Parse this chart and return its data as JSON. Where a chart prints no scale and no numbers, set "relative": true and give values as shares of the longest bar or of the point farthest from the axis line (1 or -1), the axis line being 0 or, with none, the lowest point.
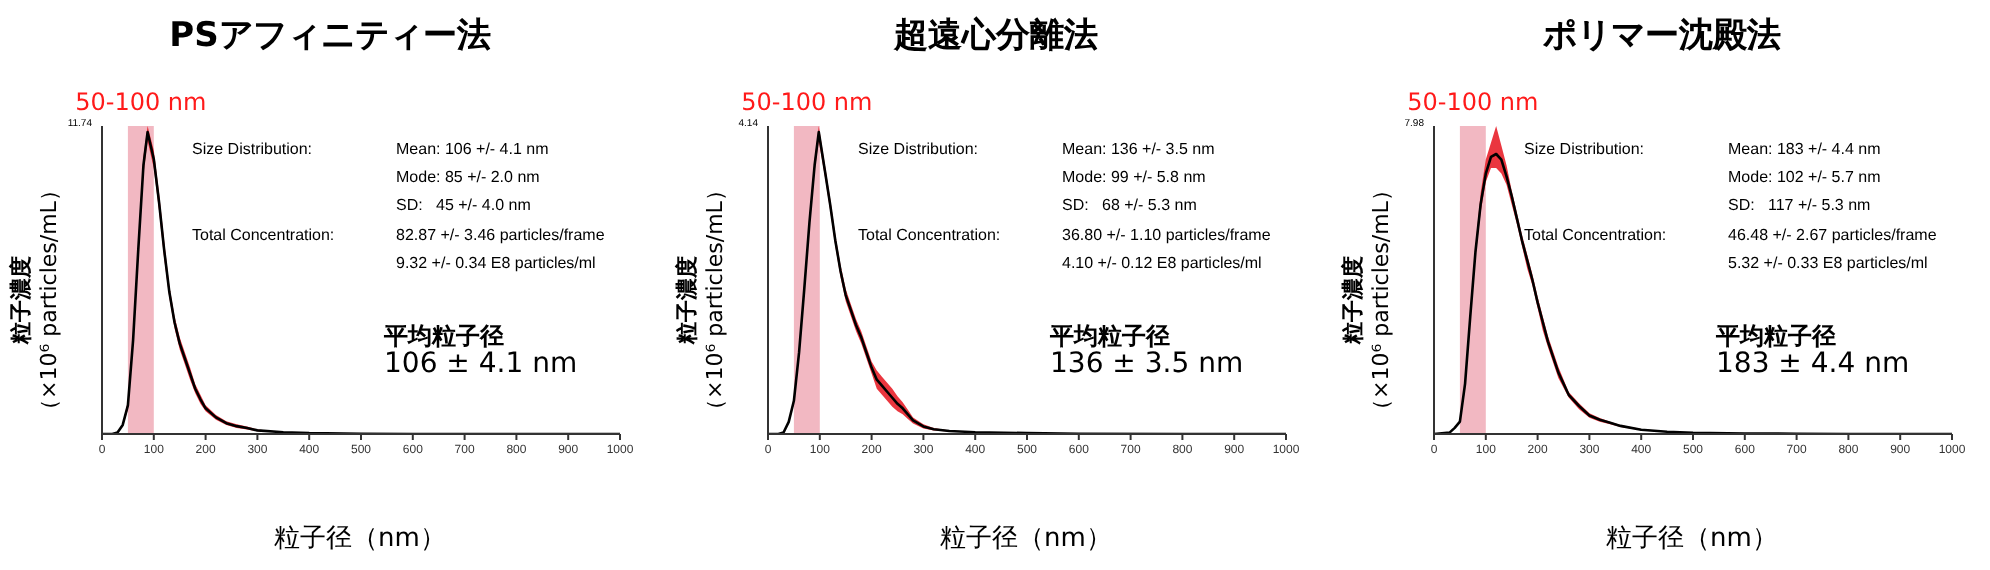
{
  "chart_data": [
    {
      "type": "line",
      "title": "PSアフィニティー法",
      "xlabel": "粒子径（nm）",
      "ylabel": "粒子濃度（×10⁶ particles/mL）",
      "relative": true,
      "xlim": [
        0,
        1000
      ],
      "xticks": [
        0,
        100,
        200,
        300,
        400,
        500,
        600,
        700,
        800,
        900,
        1000
      ],
      "x": [
        0,
        20,
        30,
        40,
        50,
        60,
        70,
        80,
        88,
        100,
        110,
        120,
        130,
        140,
        150,
        160,
        170,
        180,
        190,
        200,
        220,
        240,
        260,
        280,
        300,
        350,
        400,
        500,
        600,
        700,
        800,
        900,
        1000
      ],
      "series": [
        {
          "color": "#000000",
          "values": [
            0,
            0,
            0.005,
            0.03,
            0.095,
            0.31,
            0.61,
            0.89,
            1,
            0.91,
            0.77,
            0.61,
            0.47,
            0.37,
            0.3,
            0.25,
            0.2,
            0.15,
            0.115,
            0.085,
            0.055,
            0.036,
            0.026,
            0.02,
            0.012,
            0.006,
            0.003,
            0.001,
            0,
            0,
            0,
            0,
            0
          ],
          "lower": [
            0,
            0,
            0.005,
            0.025,
            0.08,
            0.29,
            0.58,
            0.86,
            0.97,
            0.88,
            0.74,
            0.58,
            0.45,
            0.35,
            0.28,
            0.23,
            0.18,
            0.135,
            0.1,
            0.075,
            0.047,
            0.03,
            0.02,
            0.015,
            0.009,
            0.005,
            0.003,
            0.001,
            0,
            0,
            0,
            0,
            0
          ],
          "upper": [
            0,
            0,
            0.005,
            0.035,
            0.11,
            0.33,
            0.64,
            0.92,
            1.02,
            0.94,
            0.8,
            0.64,
            0.49,
            0.39,
            0.32,
            0.27,
            0.22,
            0.165,
            0.13,
            0.095,
            0.063,
            0.042,
            0.032,
            0.025,
            0.015,
            0.007,
            0.003,
            0.001,
            0,
            0,
            0,
            0,
            0
          ]
        }
      ],
      "bands": [
        {
          "axis": "x",
          "from": 50,
          "to": 100,
          "label": "50-100 nm",
          "color": "#f2b8c2"
        }
      ],
      "annotations": [
        "Size Distribution:",
        "Mean: 106 +/- 4.1 nm",
        "Mode: 85 +/- 2.0 nm",
        "SD:   45 +/- 4.0 nm",
        "Total Concentration:",
        "82.87 +/- 3.46 particles/frame",
        "9.32 +/- 0.34 E8 particles/ml",
        "平均粒子径",
        "106 ± 4.1 nm",
        "11.74"
      ]
    },
    {
      "type": "line",
      "title": "超遠心分離法",
      "xlabel": "粒子径（nm）",
      "ylabel": "粒子濃度（×10⁶ particles/mL）",
      "relative": true,
      "xlim": [
        0,
        1000
      ],
      "xticks": [
        0,
        100,
        200,
        300,
        400,
        500,
        600,
        700,
        800,
        900,
        1000
      ],
      "x": [
        0,
        20,
        30,
        40,
        50,
        60,
        70,
        80,
        90,
        98,
        110,
        120,
        130,
        140,
        150,
        160,
        170,
        180,
        190,
        200,
        210,
        220,
        230,
        240,
        250,
        260,
        270,
        280,
        300,
        320,
        350,
        400,
        500,
        600,
        800,
        1000
      ],
      "series": [
        {
          "color": "#000000",
          "values": [
            0,
            0,
            0.005,
            0.04,
            0.11,
            0.27,
            0.48,
            0.7,
            0.89,
            1,
            0.87,
            0.76,
            0.64,
            0.54,
            0.46,
            0.41,
            0.36,
            0.32,
            0.27,
            0.22,
            0.18,
            0.16,
            0.14,
            0.12,
            0.1,
            0.085,
            0.065,
            0.045,
            0.025,
            0.016,
            0.01,
            0.006,
            0.003,
            0.001,
            0,
            0
          ],
          "lower": [
            0,
            0,
            0.005,
            0.035,
            0.1,
            0.25,
            0.46,
            0.68,
            0.87,
            0.97,
            0.85,
            0.74,
            0.62,
            0.52,
            0.44,
            0.39,
            0.34,
            0.3,
            0.25,
            0.2,
            0.15,
            0.13,
            0.11,
            0.09,
            0.075,
            0.065,
            0.05,
            0.035,
            0.018,
            0.012,
            0.008,
            0.005,
            0.003,
            0.001,
            0,
            0
          ],
          "upper": [
            0,
            0,
            0.005,
            0.045,
            0.12,
            0.29,
            0.5,
            0.72,
            0.91,
            1.02,
            0.89,
            0.78,
            0.66,
            0.56,
            0.48,
            0.43,
            0.38,
            0.34,
            0.29,
            0.24,
            0.21,
            0.19,
            0.17,
            0.15,
            0.125,
            0.105,
            0.08,
            0.055,
            0.032,
            0.02,
            0.012,
            0.007,
            0.003,
            0.001,
            0,
            0
          ]
        }
      ],
      "bands": [
        {
          "axis": "x",
          "from": 50,
          "to": 100,
          "label": "50-100 nm",
          "color": "#f2b8c2"
        }
      ],
      "annotations": [
        "Size Distribution:",
        "Mean: 136 +/- 3.5 nm",
        "Mode: 99 +/- 5.8 nm",
        "SD:   68 +/- 5.3 nm",
        "Total Concentration:",
        "36.80 +/- 1.10 particles/frame",
        "4.10 +/- 0.12 E8 particles/ml",
        "平均粒子径",
        "136 ± 3.5 nm",
        "4.14"
      ]
    },
    {
      "type": "line",
      "title": "ポリマー沈殿法",
      "xlabel": "粒子径（nm）",
      "ylabel": "粒子濃度（×10⁶ particles/mL）",
      "relative": true,
      "xlim": [
        0,
        1000
      ],
      "xticks": [
        0,
        100,
        200,
        300,
        400,
        500,
        600,
        700,
        800,
        900,
        1000
      ],
      "x": [
        0,
        30,
        40,
        50,
        60,
        70,
        80,
        90,
        100,
        110,
        120,
        130,
        140,
        150,
        160,
        170,
        180,
        190,
        200,
        210,
        220,
        240,
        260,
        280,
        300,
        320,
        340,
        360,
        400,
        450,
        500,
        600,
        700,
        800,
        1000
      ],
      "series": [
        {
          "color": "#000000",
          "values": [
            0,
            0.005,
            0.022,
            0.044,
            0.18,
            0.42,
            0.65,
            0.82,
            0.93,
            0.99,
            1,
            0.98,
            0.92,
            0.85,
            0.77,
            0.69,
            0.62,
            0.55,
            0.47,
            0.4,
            0.33,
            0.22,
            0.14,
            0.1,
            0.066,
            0.051,
            0.04,
            0.029,
            0.015,
            0.008,
            0.004,
            0.002,
            0.001,
            0,
            0
          ],
          "lower": [
            0,
            0.005,
            0.02,
            0.038,
            0.16,
            0.4,
            0.63,
            0.79,
            0.9,
            0.95,
            0.95,
            0.93,
            0.89,
            0.82,
            0.75,
            0.67,
            0.59,
            0.53,
            0.45,
            0.37,
            0.31,
            0.2,
            0.13,
            0.088,
            0.058,
            0.044,
            0.035,
            0.025,
            0.013,
            0.007,
            0.004,
            0.002,
            0.001,
            0,
            0
          ],
          "upper": [
            0,
            0.005,
            0.024,
            0.049,
            0.19,
            0.44,
            0.67,
            0.86,
            0.98,
            1.04,
            1.1,
            1.03,
            0.96,
            0.87,
            0.79,
            0.71,
            0.64,
            0.57,
            0.49,
            0.42,
            0.35,
            0.24,
            0.15,
            0.11,
            0.074,
            0.057,
            0.044,
            0.032,
            0.018,
            0.009,
            0.004,
            0.002,
            0.001,
            0,
            0
          ]
        }
      ],
      "bands": [
        {
          "axis": "x",
          "from": 50,
          "to": 100,
          "label": "50-100 nm",
          "color": "#f2b8c2"
        }
      ],
      "annotations": [
        "Size Distribution:",
        "Mean: 183 +/- 4.4 nm",
        "Mode: 102 +/- 5.7 nm",
        "SD:   117 +/- 5.3 nm",
        "Total Concentration:",
        "46.48 +/- 2.67 particles/frame",
        "5.32 +/- 0.33 E8 particles/ml",
        "平均粒子径",
        "183 ± 4.4 nm",
        "7.98"
      ]
    }
  ]
}
